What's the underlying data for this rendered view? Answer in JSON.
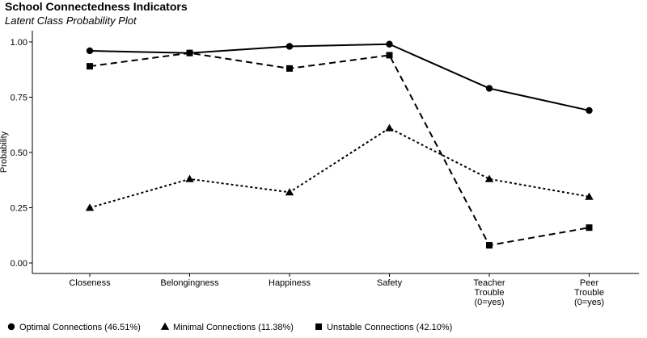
{
  "chart_data": {
    "type": "line",
    "title": "School Connectedness Indicators",
    "subtitle": "Latent Class Probability Plot",
    "ylabel": "Probability",
    "xlabel": "",
    "ylim": [
      0,
      1
    ],
    "yticks": [
      "0.00",
      "0.25",
      "0.50",
      "0.75",
      "1.00"
    ],
    "categories": [
      [
        "Closeness"
      ],
      [
        "Belongingness"
      ],
      [
        "Happiness"
      ],
      [
        "Safety"
      ],
      [
        "Teacher",
        "Trouble",
        "(0=yes)"
      ],
      [
        "Peer",
        "Trouble",
        "(0=yes)"
      ]
    ],
    "series": [
      {
        "name": "Optimal Connections (46.51%)",
        "marker": "circle",
        "dash": "solid",
        "values": [
          0.96,
          0.95,
          0.98,
          0.99,
          0.79,
          0.69
        ]
      },
      {
        "name": "Minimal Connections (11.38%)",
        "marker": "triangle",
        "dash": "dotted",
        "values": [
          0.25,
          0.38,
          0.32,
          0.61,
          0.38,
          0.3
        ]
      },
      {
        "name": "Unstable Connections (42.10%)",
        "marker": "square",
        "dash": "dashed",
        "values": [
          0.89,
          0.95,
          0.88,
          0.94,
          0.08,
          0.16
        ]
      }
    ],
    "grid": false,
    "legend_position": "bottom-left"
  }
}
